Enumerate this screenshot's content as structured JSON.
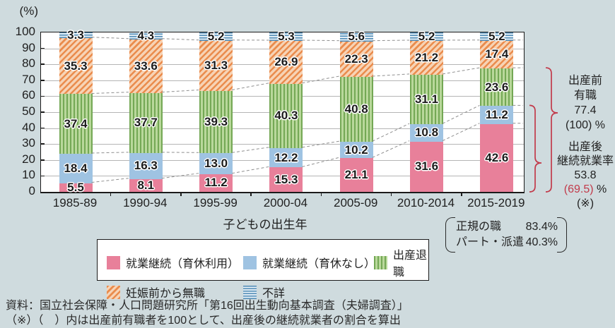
{
  "chart_data": {
    "type": "bar",
    "subtype": "stacked-bar",
    "unit_label": "(%)",
    "xlabel": "子どもの出生年",
    "ylim": [
      0,
      100
    ],
    "ytick_step": 10,
    "grid": true,
    "legend_position": "bottom",
    "categories": [
      "1985-89",
      "1990-94",
      "1995-99",
      "2000-04",
      "2005-09",
      "2010-2014",
      "2015-2019"
    ],
    "series": [
      {
        "name": "就業継続（育休利用）",
        "pattern": "solid",
        "color": "#e8809a",
        "values": [
          5.5,
          8.1,
          11.2,
          15.3,
          21.1,
          31.6,
          42.6
        ]
      },
      {
        "name": "就業継続（育休なし）",
        "pattern": "solid",
        "color": "#9fc3e2",
        "values": [
          18.4,
          16.3,
          13.0,
          12.2,
          10.2,
          10.8,
          11.2
        ]
      },
      {
        "name": "出産退職",
        "pattern": "vertical-stripes",
        "color": "#74a855",
        "values": [
          37.4,
          37.7,
          39.3,
          40.3,
          40.8,
          31.1,
          23.6
        ]
      },
      {
        "name": "妊娠前から無職",
        "pattern": "diagonal-stripes",
        "color": "#ea8c4d",
        "values": [
          35.3,
          33.6,
          31.3,
          26.9,
          22.3,
          21.2,
          17.4
        ]
      },
      {
        "name": "不詳",
        "pattern": "horizontal-stripes",
        "color": "#4d89b4",
        "values": [
          3.3,
          4.3,
          5.2,
          5.3,
          5.6,
          5.2,
          5.2
        ]
      }
    ]
  },
  "annotations": {
    "brace_color": "#c23a4a",
    "pre_birth": {
      "lines": [
        "出産前",
        "有職",
        "77.4",
        "(100) %"
      ]
    },
    "post_birth": {
      "lines": [
        "出産後",
        "継続就業率",
        "53.8"
      ],
      "paren_value": "(69.5)",
      "percent_suffix": " %",
      "note_mark": "(※)"
    }
  },
  "note_box": {
    "rows": [
      {
        "label": "正規の職",
        "value": "83.4%"
      },
      {
        "label": "パート・派遣",
        "value": "40.3%"
      }
    ]
  },
  "footer": {
    "source_line": "資料：国立社会保障・人口問題研究所「第16回出生動向基本調査（夫婦調査）」",
    "note_line": "（※）（　）内は出産前有職者を100として、出産後の継続就業者の割合を算出"
  }
}
